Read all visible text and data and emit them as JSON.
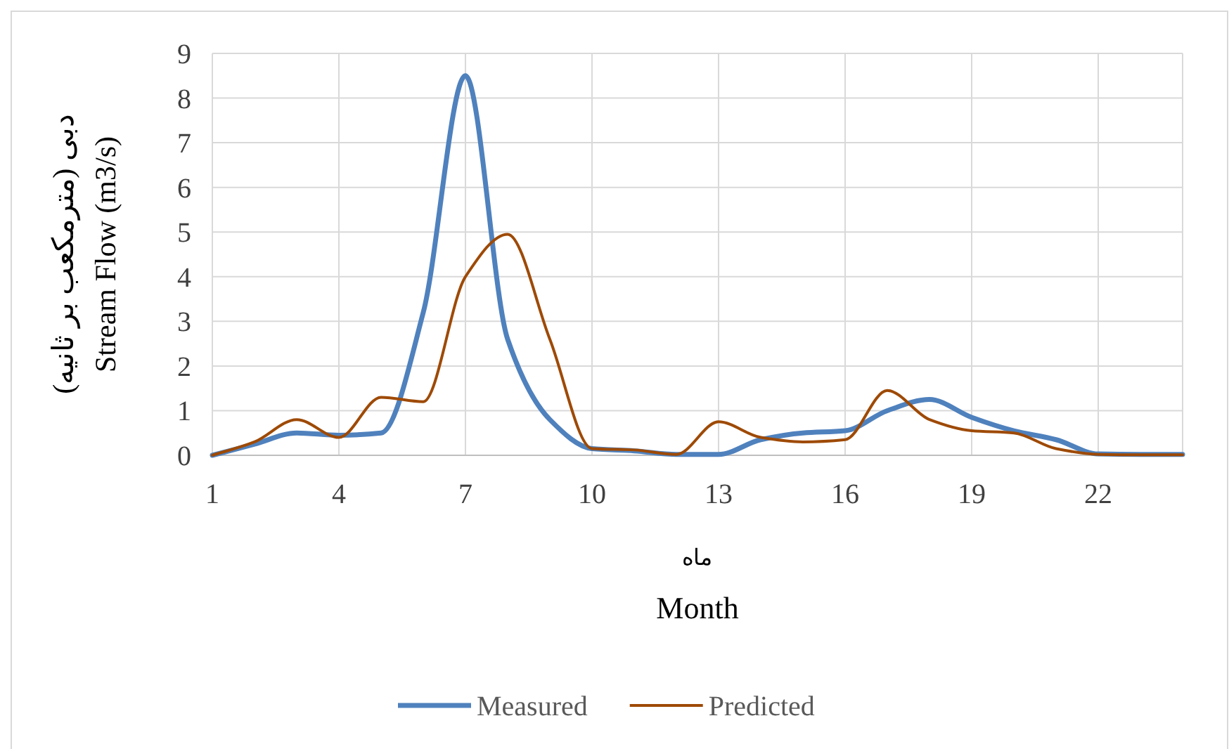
{
  "chart_data": {
    "type": "line",
    "ylabel": "دبی (مترمکعب بر ثانیه)\nStream Flow (m3/s)",
    "xlabel": "ماه\nMonth",
    "categories": [
      "1",
      null,
      null,
      "4",
      null,
      null,
      "7",
      null,
      null,
      "10",
      null,
      null,
      "13",
      null,
      null,
      "16",
      null,
      null,
      "19",
      null,
      null,
      "22",
      null,
      null
    ],
    "series": [
      {
        "name": "Measured",
        "color": "#4f81bd",
        "values": [
          0,
          0.25,
          0.5,
          0.45,
          0.5,
          3.2,
          8.5,
          2.6,
          0.8,
          0.15,
          0.1,
          0.02,
          0.02,
          0.35,
          0.5,
          0.55,
          1.0,
          1.25,
          0.85,
          0.55,
          0.35,
          0.03,
          0.02,
          0.02
        ]
      },
      {
        "name": "Predicted",
        "color": "#9e4a06",
        "values": [
          0,
          0.3,
          0.8,
          0.4,
          1.3,
          1.2,
          4.0,
          4.95,
          2.6,
          0.15,
          0.12,
          0.02,
          0.75,
          0.4,
          0.3,
          0.35,
          1.45,
          0.8,
          0.55,
          0.5,
          0.15,
          0.02,
          0.01,
          0.01
        ]
      }
    ],
    "ylim": [
      0,
      9
    ],
    "yticks": [
      0,
      1,
      2,
      3,
      4,
      5,
      6,
      7,
      8,
      9
    ],
    "grid": true,
    "legend": "bottom"
  }
}
